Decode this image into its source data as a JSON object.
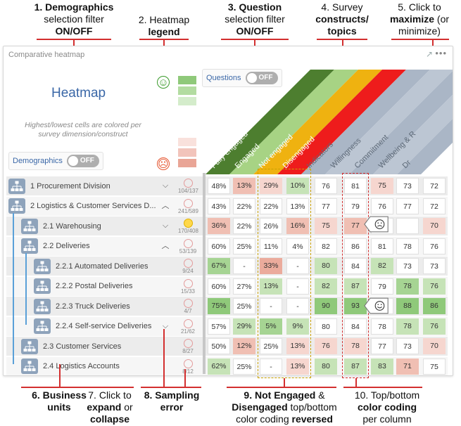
{
  "annotations": {
    "a1": {
      "num": "1.",
      "bold1": "Demographics",
      "line2": "selection filter",
      "line3": "ON/OFF"
    },
    "a2": {
      "line1": "2. Heatmap",
      "line2": "legend"
    },
    "a3": {
      "num": "3.",
      "bold1": "Question",
      "line2": "selection filter",
      "line3": "ON/OFF"
    },
    "a4": {
      "line1": "4. Survey",
      "line2": "constructs/",
      "line3": "topics"
    },
    "a5": {
      "line1": "5. Click to",
      "bold2": "maximize",
      "rest2": "(or",
      "line3": "minimize)"
    },
    "a6": {
      "line1": "6. Business",
      "line2": "units"
    },
    "a7": {
      "line1": "7. Click to",
      "bold2": "expand",
      "rest2": "or",
      "line3": "collapse"
    },
    "a8": {
      "line1": "8. Sampling",
      "line2": "error"
    },
    "a9": {
      "bold1": "9. Not Engaged",
      "rest1": "&",
      "bold2a": "Disengaged",
      "rest2": "top/bottom",
      "rest3": "color coding",
      "bold3": "reversed"
    },
    "a10": {
      "line1": "10. Top/bottom",
      "line2": "color coding",
      "line3": "per column"
    }
  },
  "widget": {
    "title": "Comparative heatmap",
    "heatmap_title": "Heatmap",
    "note": "Highest/lowest cells are colored per survey dimension/construct",
    "demographics_label": "Demographics",
    "questions_label": "Questions",
    "toggle_off": "OFF",
    "maximize_icon": "maximize-arrow-icon",
    "menu_icon": "more-dots-icon",
    "legend_colors": [
      "#8fc97a",
      "#b3dca1",
      "#d4eccb",
      "#f9e1dc",
      "#f2c4bb",
      "#e9a596"
    ]
  },
  "columns": [
    {
      "label": "Fully engaged",
      "color": "#4d7e2f"
    },
    {
      "label": "Engaged",
      "color": "#a7d384"
    },
    {
      "label": "Not engaged",
      "color": "#efb210"
    },
    {
      "label": "Disengaged",
      "color": "#ee1c1c"
    },
    {
      "label": "Indicators",
      "color": "#aab6c6"
    },
    {
      "label": "Willingness",
      "color": "#bcc6d3"
    },
    {
      "label": "Commitment",
      "color": "#aab6c6"
    },
    {
      "label": "Wellbeing & R",
      "color": "#bcc6d3"
    },
    {
      "label": "Dr",
      "color": "#aab6c6"
    }
  ],
  "rows": [
    {
      "label": "1  Procurement Division",
      "indent": 0,
      "chevron": "down",
      "sampling": "104/137",
      "warn": false,
      "cells": [
        "48%",
        "13%",
        "29%",
        "10%",
        "76",
        "81",
        "75",
        "73",
        "72"
      ]
    },
    {
      "label": "2  Logistics & Customer Services D...",
      "indent": 0,
      "chevron": "up",
      "sampling": "241/589",
      "warn": false,
      "cells": [
        "43%",
        "22%",
        "22%",
        "13%",
        "77",
        "79",
        "76",
        "77",
        "72"
      ]
    },
    {
      "label": "2.1  Warehousing",
      "indent": 1,
      "chevron": "down",
      "sampling": "170/408",
      "warn": true,
      "cells": [
        "36%",
        "22%",
        "26%",
        "16%",
        "75",
        "77",
        "",
        "",
        "70"
      ]
    },
    {
      "label": "2.2  Deliveries",
      "indent": 1,
      "chevron": "up",
      "sampling": "53/139",
      "warn": false,
      "cells": [
        "60%",
        "25%",
        "11%",
        "4%",
        "82",
        "86",
        "81",
        "78",
        "76"
      ]
    },
    {
      "label": "2.2.1  Automated Deliveries",
      "indent": 2,
      "chevron": "",
      "sampling": "9/24",
      "warn": false,
      "cells": [
        "67%",
        "-",
        "33%",
        "-",
        "80",
        "84",
        "82",
        "73",
        "73"
      ]
    },
    {
      "label": "2.2.2  Postal Deliveries",
      "indent": 2,
      "chevron": "",
      "sampling": "15/33",
      "warn": false,
      "cells": [
        "60%",
        "27%",
        "13%",
        "-",
        "82",
        "87",
        "79",
        "78",
        "76"
      ]
    },
    {
      "label": "2.2.3  Truck Deliveries",
      "indent": 2,
      "chevron": "",
      "sampling": "4/7",
      "warn": false,
      "cells": [
        "75%",
        "25%",
        "-",
        "-",
        "90",
        "93",
        "",
        "88",
        "86"
      ]
    },
    {
      "label": "2.2.4  Self-service Deliveries",
      "indent": 2,
      "chevron": "down",
      "sampling": "21/62",
      "warn": false,
      "cells": [
        "57%",
        "29%",
        "5%",
        "9%",
        "80",
        "84",
        "78",
        "78",
        "76"
      ]
    },
    {
      "label": "2.3  Customer Services",
      "indent": 1,
      "chevron": "",
      "sampling": "8/27",
      "warn": false,
      "cells": [
        "50%",
        "12%",
        "25%",
        "13%",
        "76",
        "78",
        "77",
        "73",
        "70"
      ]
    },
    {
      "label": "2.4  Logistics Accounts",
      "indent": 1,
      "chevron": "",
      "sampling": "8/12",
      "warn": false,
      "cells": [
        "62%",
        "25%",
        "-",
        "13%",
        "80",
        "87",
        "83",
        "71",
        "75"
      ]
    }
  ],
  "cell_colors": [
    [
      "w",
      "r2",
      "r1",
      "g3",
      "w",
      "w",
      "r1",
      "w",
      "w"
    ],
    [
      "w",
      "w",
      "w",
      "w",
      "w",
      "w",
      "w",
      "w",
      "w"
    ],
    [
      "r2",
      "w",
      "w",
      "r2",
      "r1",
      "r2",
      "w",
      "w",
      "r1"
    ],
    [
      "w",
      "w",
      "w",
      "w",
      "w",
      "w",
      "w",
      "w",
      "w"
    ],
    [
      "g2",
      "w",
      "r3",
      "w",
      "g3",
      "w",
      "g3",
      "w",
      "w"
    ],
    [
      "w",
      "w",
      "g3",
      "w",
      "g3",
      "g3",
      "w",
      "g2",
      "g3"
    ],
    [
      "g1",
      "w",
      "w",
      "w",
      "g1",
      "g1",
      "w",
      "g1",
      "g1"
    ],
    [
      "w",
      "g3",
      "g2",
      "g3",
      "w",
      "w",
      "w",
      "g3",
      "g3"
    ],
    [
      "w",
      "r2",
      "w",
      "r1",
      "r1",
      "r1",
      "w",
      "w",
      "r1"
    ],
    [
      "g3",
      "w",
      "w",
      "r1",
      "g3",
      "g3",
      "g3",
      "r2",
      "w"
    ]
  ],
  "palette": {
    "w": "#ffffff",
    "g1": "#8fc97a",
    "g2": "#a6d493",
    "g3": "#c6e3b7",
    "r1": "#f6d6cf",
    "r2": "#f0bfb3",
    "r3": "#ebab9c"
  },
  "callout_icons": [
    "sad-face-icon",
    "happy-face-icon"
  ]
}
